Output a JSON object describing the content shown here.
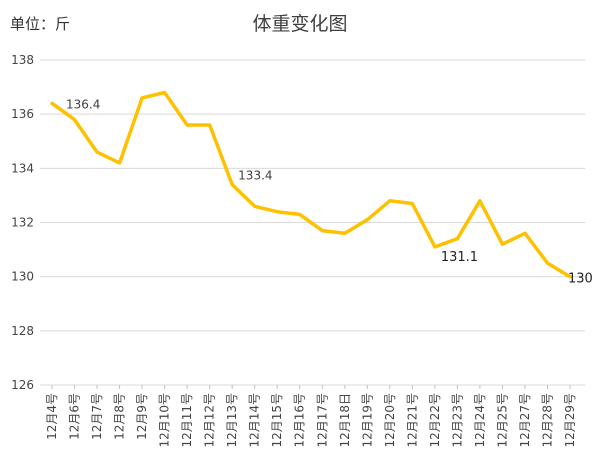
{
  "chart_data": {
    "type": "line",
    "title": "体重变化图",
    "unit_label": "单位：斤",
    "ylim": [
      126,
      138
    ],
    "yticks": [
      126,
      128,
      130,
      132,
      134,
      136,
      138
    ],
    "grid": "horizontal",
    "line_color": "#FFC000",
    "categories": [
      "12月4号",
      "12月6号",
      "12月7号",
      "12月8号",
      "12月9号",
      "12月10号",
      "12月11号",
      "12月12号",
      "12月13号",
      "12月14号",
      "12月15号",
      "12月16号",
      "12月17号",
      "12月18日",
      "12月19号",
      "12月20号",
      "12月21号",
      "12月22号",
      "12月23号",
      "12月24号",
      "12月25号",
      "12月27号",
      "12月28号",
      "12月29号"
    ],
    "values": [
      136.4,
      135.8,
      134.6,
      134.2,
      136.6,
      136.8,
      135.6,
      135.6,
      133.4,
      132.6,
      132.4,
      132.3,
      131.7,
      131.6,
      132.1,
      132.8,
      132.7,
      131.1,
      131.4,
      132.8,
      131.2,
      131.6,
      130.5,
      130.0
    ],
    "data_labels": [
      {
        "index": 0,
        "text": "136.4",
        "size": "sm"
      },
      {
        "index": 8,
        "text": "133.4",
        "size": "sm"
      },
      {
        "index": 17,
        "text": "131.1",
        "size": "lg"
      },
      {
        "index": 23,
        "text": "130",
        "size": "lg"
      }
    ]
  }
}
